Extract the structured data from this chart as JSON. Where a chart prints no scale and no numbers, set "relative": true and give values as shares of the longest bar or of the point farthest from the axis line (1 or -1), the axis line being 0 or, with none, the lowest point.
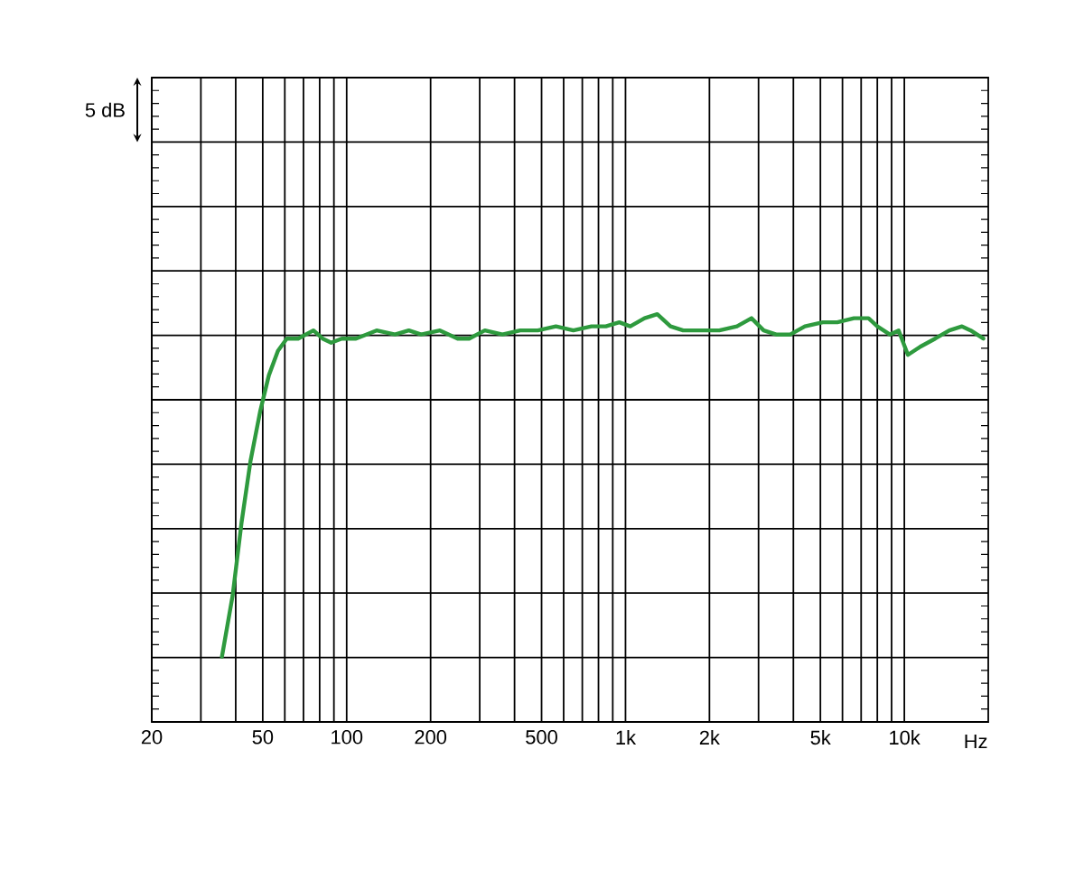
{
  "chart_data": {
    "type": "line",
    "relative": true,
    "log": "x",
    "grid": true,
    "xlabel": "Hz",
    "annotations": [
      "5 dB"
    ],
    "xlim": [
      20,
      20000
    ],
    "xticks": [
      20,
      {
        "value": 30,
        "label": null
      },
      {
        "value": 40,
        "label": null
      },
      50,
      {
        "value": 60,
        "label": null
      },
      {
        "value": 70,
        "label": null
      },
      {
        "value": 80,
        "label": null
      },
      {
        "value": 90,
        "label": null
      },
      100,
      200,
      {
        "value": 300,
        "label": null
      },
      {
        "value": 400,
        "label": null
      },
      500,
      {
        "value": 600,
        "label": null
      },
      {
        "value": 700,
        "label": null
      },
      {
        "value": 800,
        "label": null
      },
      {
        "value": 900,
        "label": null
      },
      {
        "value": 1000,
        "label": "1k"
      },
      {
        "value": 2000,
        "label": "2k"
      },
      {
        "value": 3000,
        "label": null
      },
      {
        "value": 4000,
        "label": null
      },
      {
        "value": 5000,
        "label": "5k"
      },
      {
        "value": 6000,
        "label": null
      },
      {
        "value": 7000,
        "label": null
      },
      {
        "value": 8000,
        "label": null
      },
      {
        "value": 9000,
        "label": null
      },
      {
        "value": 10000,
        "label": "10k"
      }
    ],
    "series": [
      {
        "color": "#2e9a3e",
        "x": [
          35.7,
          39,
          42,
          45.2,
          48.9,
          52.6,
          56.7,
          61,
          67,
          76,
          82,
          88,
          96,
          108,
          128,
          149,
          167,
          185,
          216,
          250,
          275,
          313,
          362,
          419,
          485,
          563,
          650,
          755,
          850,
          950,
          1040,
          1170,
          1300,
          1450,
          1610,
          1870,
          2170,
          2510,
          2830,
          3130,
          3470,
          3900,
          4400,
          5100,
          5750,
          6600,
          7440,
          8000,
          8870,
          9540,
          10300,
          11400,
          12900,
          14500,
          16100,
          17300,
          19200
        ],
        "values": [
          0.16,
          0.31,
          0.49,
          0.64,
          0.76,
          0.85,
          0.91,
          0.94,
          0.94,
          0.96,
          0.94,
          0.93,
          0.94,
          0.94,
          0.96,
          0.95,
          0.96,
          0.95,
          0.96,
          0.94,
          0.94,
          0.96,
          0.95,
          0.96,
          0.96,
          0.97,
          0.96,
          0.97,
          0.97,
          0.98,
          0.97,
          0.99,
          1.0,
          0.97,
          0.96,
          0.96,
          0.96,
          0.97,
          0.99,
          0.96,
          0.95,
          0.95,
          0.97,
          0.98,
          0.98,
          0.99,
          0.99,
          0.97,
          0.95,
          0.96,
          0.9,
          0.92,
          0.94,
          0.96,
          0.97,
          0.96,
          0.94
        ]
      }
    ]
  }
}
